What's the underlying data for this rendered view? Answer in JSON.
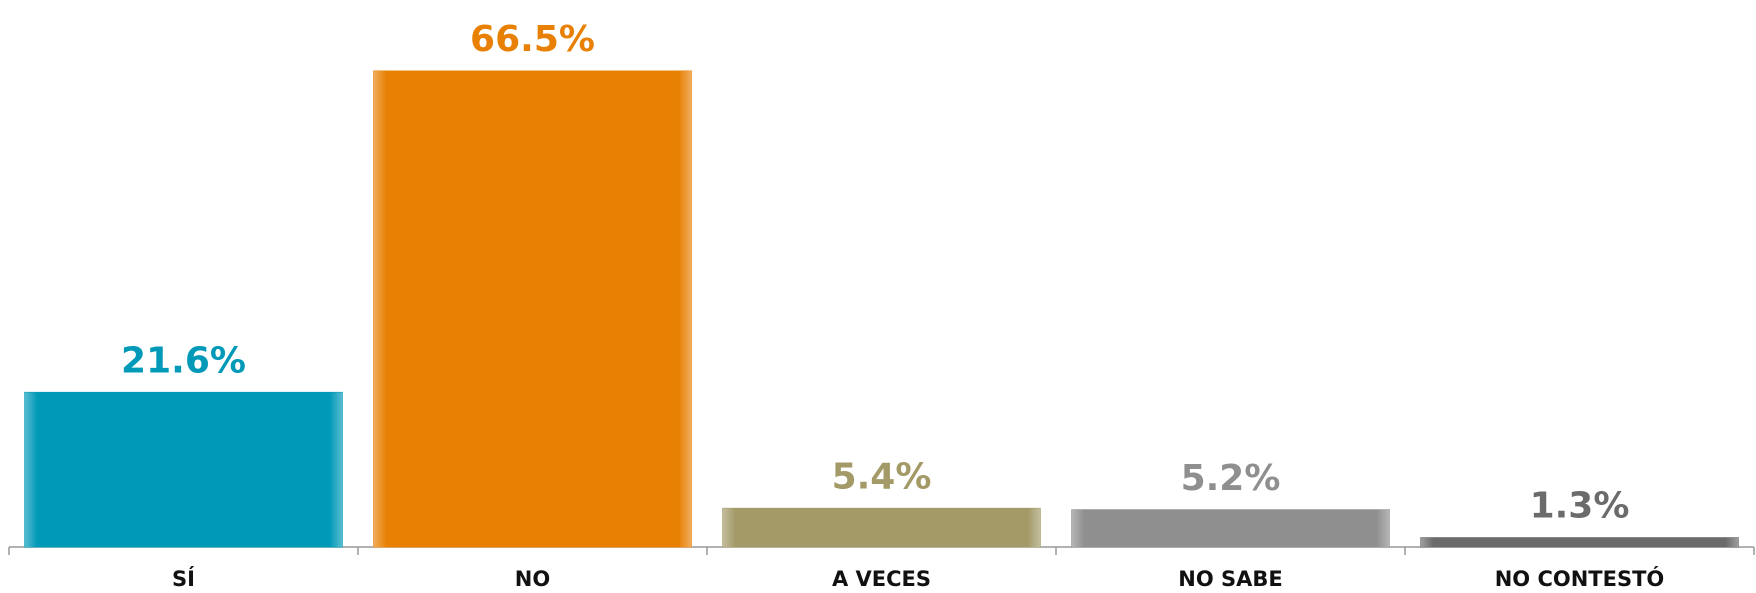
{
  "chart_data": {
    "type": "bar",
    "categories": [
      "SÍ",
      "NO",
      "A VECES",
      "NO SABE",
      "NO CONTESTÓ"
    ],
    "values": [
      21.6,
      66.5,
      5.4,
      5.2,
      1.3
    ],
    "value_labels": [
      "21.6%",
      "66.5%",
      "5.4%",
      "5.2%",
      "1.3%"
    ],
    "colors": [
      "#0099b8",
      "#e88004",
      "#a39a68",
      "#8f8f8f",
      "#6b6b6b"
    ]
  }
}
